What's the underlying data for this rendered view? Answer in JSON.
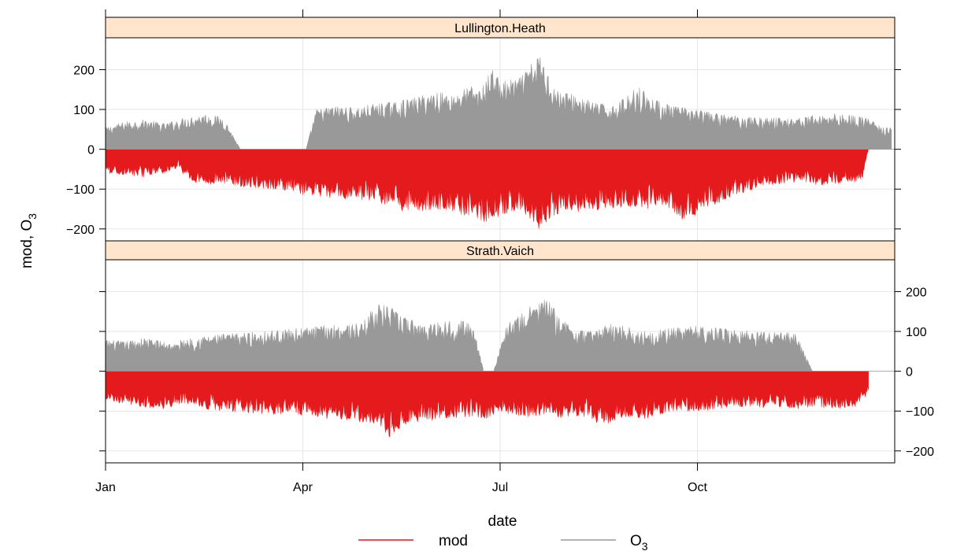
{
  "chart_data": {
    "type": "area",
    "xlabel": "date",
    "ylabel": "mod, O",
    "ylabel_sub": "3",
    "ylim": [
      -230,
      280
    ],
    "yticks": [
      -200,
      -100,
      0,
      100,
      200
    ],
    "xticks": [
      {
        "label": "Jan",
        "month": 0
      },
      {
        "label": "Apr",
        "month": 3
      },
      {
        "label": "Jul",
        "month": 6
      },
      {
        "label": "Oct",
        "month": 9
      }
    ],
    "grid": true,
    "legend": {
      "position": "bottom",
      "entries": [
        {
          "name": "mod",
          "color": "#e41a1c"
        },
        {
          "name": "O",
          "sub": "3",
          "color": "#999999"
        }
      ]
    },
    "panels": [
      {
        "strip": "Lullington.Heath",
        "series": [
          {
            "name": "O3",
            "color": "#999999",
            "envelope_month": [
              0,
              0.3,
              0.6,
              0.9,
              1.2,
              1.5,
              1.8,
              2.05,
              3.05,
              3.2,
              3.5,
              3.8,
              4.1,
              4.4,
              4.7,
              5.0,
              5.3,
              5.55,
              5.7,
              5.9,
              6.0,
              6.3,
              6.6,
              6.85,
              7.1,
              7.4,
              7.7,
              7.9,
              8.1,
              8.3,
              8.6,
              9.0,
              9.3,
              9.6,
              10.0,
              10.4,
              10.8,
              11.1,
              11.4,
              11.6,
              11.8,
              11.95
            ],
            "envelope_value": [
              55,
              70,
              75,
              65,
              80,
              90,
              80,
              0,
              0,
              100,
              110,
              105,
              115,
              120,
              130,
              145,
              140,
              160,
              150,
              210,
              170,
              180,
              240,
              150,
              140,
              120,
              110,
              130,
              160,
              130,
              110,
              100,
              90,
              85,
              80,
              80,
              85,
              90,
              85,
              80,
              55,
              55
            ],
            "gaps_month": [
              [
                2.05,
                3.05
              ]
            ]
          },
          {
            "name": "mod",
            "color": "#e41a1c",
            "envelope_month": [
              0,
              0.3,
              0.6,
              0.9,
              1.15,
              1.2,
              1.5,
              1.8,
              2.1,
              2.5,
              2.8,
              3.0,
              3.3,
              3.6,
              4.0,
              4.3,
              4.6,
              5.0,
              5.3,
              5.6,
              5.85,
              6.0,
              6.3,
              6.6,
              6.8,
              7.0,
              7.3,
              7.6,
              7.9,
              8.2,
              8.5,
              8.8,
              9.1,
              9.4,
              9.7,
              10.1,
              10.5,
              10.9,
              11.2,
              11.5,
              11.6
            ],
            "envelope_value": [
              -60,
              -65,
              -70,
              -60,
              -45,
              -75,
              -90,
              -85,
              -95,
              -100,
              -105,
              -115,
              -120,
              -125,
              -130,
              -140,
              -165,
              -150,
              -160,
              -175,
              -185,
              -170,
              -150,
              -205,
              -170,
              -160,
              -155,
              -150,
              -145,
              -150,
              -140,
              -185,
              -150,
              -130,
              -110,
              -90,
              -85,
              -90,
              -85,
              -80,
              0
            ]
          }
        ]
      },
      {
        "strip": "Strath.Vaich",
        "series": [
          {
            "name": "O3",
            "color": "#999999",
            "envelope_month": [
              0,
              0.3,
              0.6,
              0.9,
              1.1,
              1.15,
              1.5,
              1.9,
              2.3,
              2.7,
              3.0,
              3.3,
              3.6,
              3.9,
              4.1,
              4.3,
              4.5,
              4.8,
              5.1,
              5.4,
              5.6,
              5.75,
              5.9,
              6.1,
              6.3,
              6.5,
              6.7,
              6.9,
              7.1,
              7.3,
              7.5,
              7.7,
              7.9,
              8.1,
              8.4,
              8.7,
              9.0,
              9.3,
              9.6,
              9.9,
              10.2,
              10.5,
              10.75
            ],
            "envelope_value": [
              80,
              75,
              85,
              75,
              70,
              80,
              90,
              95,
              100,
              105,
              110,
              115,
              120,
              120,
              170,
              165,
              140,
              120,
              125,
              130,
              115,
              0,
              0,
              120,
              140,
              170,
              185,
              140,
              110,
              100,
              110,
              120,
              115,
              100,
              105,
              110,
              115,
              110,
              105,
              100,
              100,
              95,
              0
            ],
            "gaps_month": [
              [
                5.75,
                5.9
              ]
            ]
          },
          {
            "name": "mod",
            "color": "#e41a1c",
            "envelope_month": [
              0,
              0.3,
              0.6,
              0.9,
              1.2,
              1.5,
              1.8,
              2.2,
              2.6,
              3.0,
              3.4,
              3.8,
              4.1,
              4.3,
              4.6,
              4.9,
              5.2,
              5.5,
              5.8,
              6.1,
              6.4,
              6.7,
              7.0,
              7.3,
              7.55,
              7.8,
              8.1,
              8.4,
              8.7,
              9.0,
              9.3,
              9.6,
              9.9,
              10.2,
              10.5,
              10.8,
              11.1,
              11.4,
              11.6
            ],
            "envelope_value": [
              -70,
              -85,
              -90,
              -95,
              -80,
              -95,
              -100,
              -105,
              -110,
              -115,
              -120,
              -125,
              -135,
              -170,
              -130,
              -125,
              -120,
              -115,
              -120,
              -110,
              -115,
              -110,
              -120,
              -115,
              -140,
              -120,
              -125,
              -110,
              -100,
              -100,
              -95,
              -90,
              -95,
              -90,
              -95,
              -90,
              -95,
              -90,
              -60
            ]
          }
        ]
      }
    ]
  }
}
